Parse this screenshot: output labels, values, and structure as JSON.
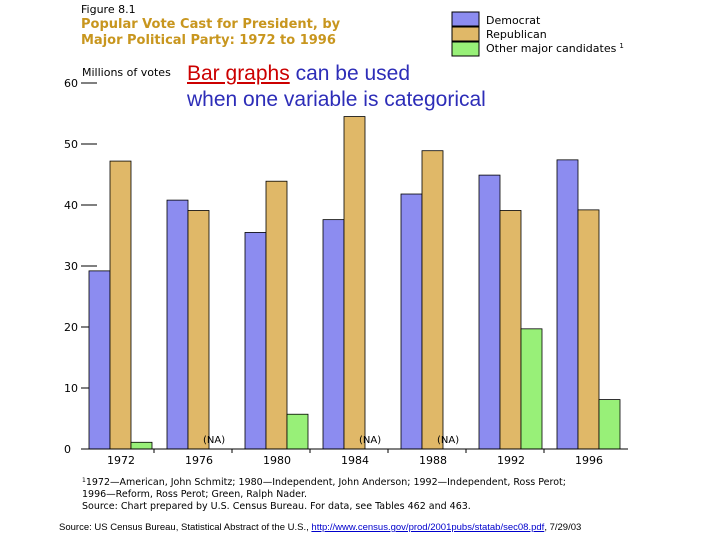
{
  "figure": {
    "number_label": "Figure 8.1",
    "title_line1": "Popular Vote Cast for President, by",
    "title_line2": "Major Political Party:  1972 to 1996"
  },
  "overlay": {
    "highlight": "Bar graphs",
    "line1_rest": " can be used",
    "line2": "when one variable is categorical"
  },
  "chart_data": {
    "type": "bar",
    "title": "Popular Vote Cast for President, by Major Political Party:  1972 to 1996",
    "ylabel": "Millions of votes",
    "xlabel": "",
    "ylim": [
      0,
      60
    ],
    "yticks": [
      "0",
      "10",
      "20",
      "30",
      "40",
      "50",
      "60"
    ],
    "categories": [
      "1972",
      "1976",
      "1980",
      "1984",
      "1988",
      "1992",
      "1996"
    ],
    "series": [
      {
        "name": "Democrat",
        "color": "#8c8cf0",
        "values": [
          29.2,
          40.8,
          35.5,
          37.6,
          41.8,
          44.9,
          47.4
        ]
      },
      {
        "name": "Republican",
        "color": "#e0b868",
        "values": [
          47.2,
          39.1,
          43.9,
          54.5,
          48.9,
          39.1,
          39.2
        ]
      },
      {
        "name": "Other major candidates",
        "color": "#98f078",
        "values": [
          1.1,
          null,
          5.7,
          null,
          null,
          19.7,
          8.1
        ]
      }
    ],
    "legend_superscript": "1",
    "na_label": "(NA)",
    "legend_position": "top-right",
    "grid": false
  },
  "footnotes": {
    "line1": "1972—American, John Schmitz; 1980—Independent, John Anderson; 1992—Independent, Ross Perot;",
    "line1_marker": "1",
    "line2": "1996—Reform, Ross Perot; Green, Ralph Nader.",
    "line3": "Source: Chart prepared by U.S. Census Bureau. For data, see Tables 462 and 463."
  },
  "source": {
    "prefix": "Source: US Census Bureau, Statistical Abstract of the U.S., ",
    "link": "http://www.census.gov/prod/2001pubs/statab/sec08.pdf",
    "suffix": ", 7/29/03"
  }
}
